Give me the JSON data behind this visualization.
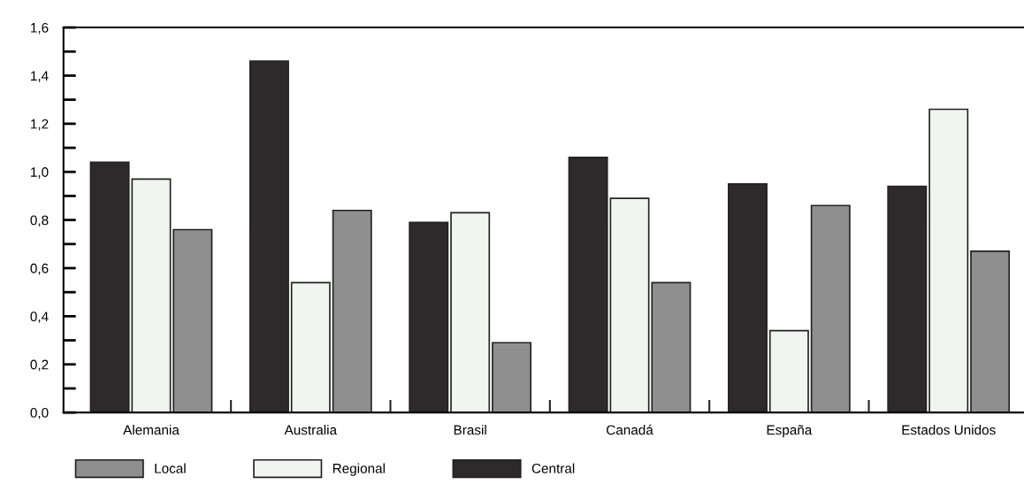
{
  "chart_data": {
    "type": "bar",
    "categories": [
      "Alemania",
      "Australia",
      "Brasil",
      "Canadá",
      "España",
      "Estados Unidos"
    ],
    "series": [
      {
        "name": "Central",
        "color": "#2e2a2b",
        "values": [
          1.04,
          1.46,
          0.79,
          1.06,
          0.95,
          0.94
        ]
      },
      {
        "name": "Regional",
        "color": "#f2f4f2",
        "values": [
          0.97,
          0.54,
          0.83,
          0.89,
          0.34,
          1.26
        ]
      },
      {
        "name": "Local",
        "color": "#8f8f8f",
        "values": [
          0.76,
          0.84,
          0.29,
          0.54,
          0.86,
          0.67
        ]
      }
    ],
    "ylim": [
      0,
      1.6
    ],
    "yticks": [
      {
        "value": 0,
        "label": "0,0"
      },
      {
        "value": 0.1,
        "label": null
      },
      {
        "value": 0.2,
        "label": "0,2"
      },
      {
        "value": 0.3,
        "label": null
      },
      {
        "value": 0.4,
        "label": "0,4"
      },
      {
        "value": 0.5,
        "label": null
      },
      {
        "value": 0.6,
        "label": "0,6"
      },
      {
        "value": 0.7,
        "label": null
      },
      {
        "value": 0.8,
        "label": "0,8"
      },
      {
        "value": 0.9,
        "label": null
      },
      {
        "value": 1.0,
        "label": "1,0"
      },
      {
        "value": 1.1,
        "label": null
      },
      {
        "value": 1.2,
        "label": "1,2"
      },
      {
        "value": 1.3,
        "label": null
      },
      {
        "value": 1.4,
        "label": "1,4"
      },
      {
        "value": 1.5,
        "label": null
      },
      {
        "value": 1.6,
        "label": "1,6"
      }
    ],
    "grid": false,
    "legend": "bottom"
  }
}
